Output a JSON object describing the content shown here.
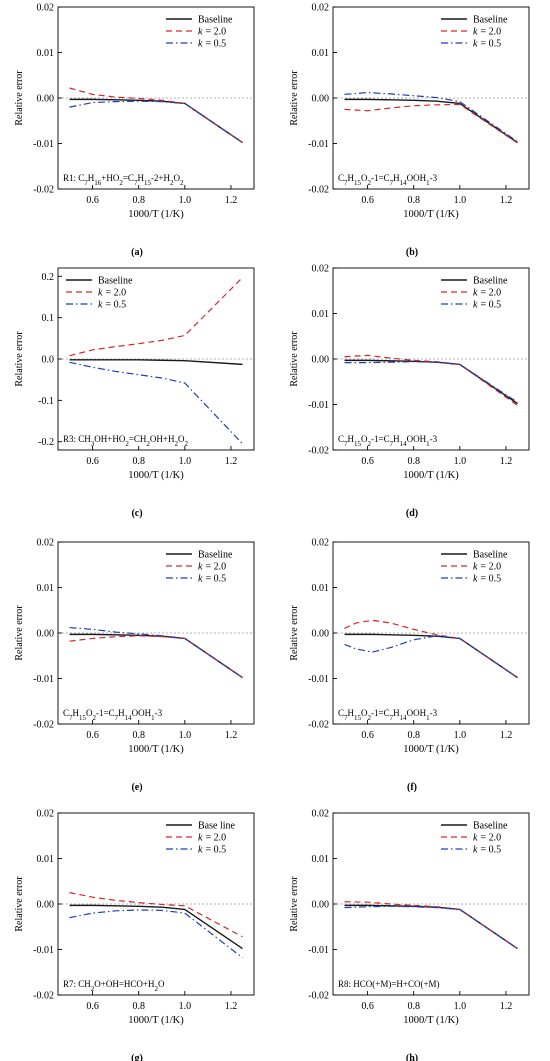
{
  "legend_labels": {
    "baseline": "Baseline",
    "baseline_alt": "Base line",
    "k_prefix": "k",
    "k2_value": "= 2.0",
    "k05_value": "= 0.5"
  },
  "colors": {
    "baseline": "#1a1a1a",
    "k2": "#d62728",
    "k05": "#1f3fbf",
    "zero_line": "#9a9a9a"
  },
  "chart_data": [
    {
      "panel": "(a)",
      "type": "line",
      "ylabel": "Relative error",
      "xlabel": "1000/T (1/K)",
      "xlim": [
        0.45,
        1.3
      ],
      "ylim": [
        -0.02,
        0.02
      ],
      "xticks": [
        0.6,
        0.8,
        1.0,
        1.2
      ],
      "xtick_labels": [
        "0.6",
        "0.8",
        "1.0",
        "1.2"
      ],
      "yticks": [
        -0.02,
        -0.01,
        0,
        0.01,
        0.02
      ],
      "ytick_labels": [
        "-0.02",
        "-0.01",
        "0.00",
        "0.01",
        "0.02"
      ],
      "legend_position": "top-right",
      "baseline_label": "Baseline",
      "annotation": {
        "base": "R1: C7H16+HO2=C7H15-2+H2O2",
        "html": "R1: C<tspan baseline-shift=\"sub\" font-size=\"7\">7</tspan>H<tspan baseline-shift=\"sub\" font-size=\"7\">16</tspan>+HO<tspan baseline-shift=\"sub\" font-size=\"7\">2</tspan>=C<tspan baseline-shift=\"sub\" font-size=\"7\">7</tspan>H<tspan baseline-shift=\"sub\" font-size=\"7\">15</tspan>-2+H<tspan baseline-shift=\"sub\" font-size=\"7\">2</tspan>O<tspan baseline-shift=\"sub\" font-size=\"7\">2</tspan>"
      },
      "x": [
        0.5,
        0.6,
        0.7,
        0.8,
        0.9,
        1.0,
        1.25
      ],
      "series": [
        {
          "name": "Baseline",
          "key": "baseline",
          "values": [
            -0.0003,
            -0.0003,
            -0.0004,
            -0.0005,
            -0.0007,
            -0.0012,
            -0.0098
          ]
        },
        {
          "name": "k = 2.0",
          "key": "k2",
          "values": [
            0.0022,
            0.0008,
            0.0002,
            -0.0001,
            -0.0005,
            -0.0012,
            -0.0098
          ]
        },
        {
          "name": "k = 0.5",
          "key": "k05",
          "values": [
            -0.002,
            -0.001,
            -0.0008,
            -0.0007,
            -0.0008,
            -0.0012,
            -0.0098
          ]
        }
      ]
    },
    {
      "panel": "(b)",
      "type": "line",
      "ylabel": "Relative error",
      "xlabel": "1000/T (1/K)",
      "xlim": [
        0.45,
        1.3
      ],
      "ylim": [
        -0.02,
        0.02
      ],
      "xticks": [
        0.6,
        0.8,
        1.0,
        1.2
      ],
      "xtick_labels": [
        "0.6",
        "0.8",
        "1.0",
        "1.2"
      ],
      "yticks": [
        -0.02,
        -0.01,
        0,
        0.01,
        0.02
      ],
      "ytick_labels": [
        "-0.02",
        "-0.01",
        "0.00",
        "0.01",
        "0.02"
      ],
      "legend_position": "top-right",
      "baseline_label": "Baseline",
      "annotation": {
        "base": "C7H15O2-1=C7H14OOH1-3",
        "html": "C<tspan baseline-shift=\"sub\" font-size=\"7\">7</tspan>H<tspan baseline-shift=\"sub\" font-size=\"7\">15</tspan>O<tspan baseline-shift=\"sub\" font-size=\"7\">2</tspan>-1=C<tspan baseline-shift=\"sub\" font-size=\"7\">7</tspan>H<tspan baseline-shift=\"sub\" font-size=\"7\">14</tspan>OOH<tspan baseline-shift=\"sub\" font-size=\"7\">1</tspan>-3"
      },
      "x": [
        0.5,
        0.6,
        0.7,
        0.8,
        0.9,
        1.0,
        1.25
      ],
      "series": [
        {
          "name": "Baseline",
          "key": "baseline",
          "values": [
            -0.0003,
            -0.0003,
            -0.0004,
            -0.0005,
            -0.0007,
            -0.0012,
            -0.0098
          ]
        },
        {
          "name": "k = 2.0",
          "key": "k2",
          "values": [
            -0.0025,
            -0.0028,
            -0.0022,
            -0.0017,
            -0.0015,
            -0.0014,
            -0.0099
          ]
        },
        {
          "name": "k = 0.5",
          "key": "k05",
          "values": [
            0.0008,
            0.0012,
            0.0009,
            0.0005,
            0.0001,
            -0.0008,
            -0.0096
          ]
        }
      ]
    },
    {
      "panel": "(c)",
      "type": "line",
      "ylabel": "Relative error",
      "xlabel": "1000/T (1/K)",
      "xlim": [
        0.45,
        1.3
      ],
      "ylim": [
        -0.22,
        0.22
      ],
      "xticks": [
        0.6,
        0.8,
        1.0,
        1.2
      ],
      "xtick_labels": [
        "0.6",
        "0.8",
        "1.0",
        "1.2"
      ],
      "yticks": [
        -0.2,
        -0.1,
        0,
        0.1,
        0.2
      ],
      "ytick_labels": [
        "-0.2",
        "-0.1",
        "0.0",
        "0.1",
        "0.2"
      ],
      "legend_position": "top-left",
      "baseline_label": "Baseline",
      "annotation": {
        "base": "R3: CH3OH+HO2=CH2OH+H2O2",
        "html": "R3: CH<tspan baseline-shift=\"sub\" font-size=\"7\">3</tspan>OH+HO<tspan baseline-shift=\"sub\" font-size=\"7\">2</tspan>=CH<tspan baseline-shift=\"sub\" font-size=\"7\">2</tspan>OH+H<tspan baseline-shift=\"sub\" font-size=\"7\">2</tspan>O<tspan baseline-shift=\"sub\" font-size=\"7\">2</tspan>"
      },
      "x": [
        0.5,
        0.6,
        0.7,
        0.8,
        0.9,
        1.0,
        1.25
      ],
      "series": [
        {
          "name": "Baseline",
          "key": "baseline",
          "values": [
            -0.002,
            -0.002,
            -0.002,
            -0.002,
            -0.003,
            -0.004,
            -0.013
          ]
        },
        {
          "name": "k = 2.0",
          "key": "k2",
          "values": [
            0.008,
            0.022,
            0.03,
            0.037,
            0.045,
            0.057,
            0.197
          ]
        },
        {
          "name": "k = 0.5",
          "key": "k05",
          "values": [
            -0.008,
            -0.02,
            -0.03,
            -0.038,
            -0.046,
            -0.058,
            -0.205
          ]
        }
      ]
    },
    {
      "panel": "(d)",
      "type": "line",
      "ylabel": "Relative error",
      "xlabel": "1000/T (1/K)",
      "xlim": [
        0.45,
        1.3
      ],
      "ylim": [
        -0.02,
        0.02
      ],
      "xticks": [
        0.6,
        0.8,
        1.0,
        1.2
      ],
      "xtick_labels": [
        "0.6",
        "0.8",
        "1.0",
        "1.2"
      ],
      "yticks": [
        -0.02,
        -0.01,
        0,
        0.01,
        0.02
      ],
      "ytick_labels": [
        "-0.02",
        "-0.01",
        "0.00",
        "0.01",
        "0.02"
      ],
      "legend_position": "top-right",
      "baseline_label": "Baseline",
      "annotation": {
        "base": "C7H15O2-1=C7H14OOH1-3",
        "html": "C<tspan baseline-shift=\"sub\" font-size=\"7\">7</tspan>H<tspan baseline-shift=\"sub\" font-size=\"7\">15</tspan>O<tspan baseline-shift=\"sub\" font-size=\"7\">2</tspan>-1=C<tspan baseline-shift=\"sub\" font-size=\"7\">7</tspan>H<tspan baseline-shift=\"sub\" font-size=\"7\">14</tspan>OOH<tspan baseline-shift=\"sub\" font-size=\"7\">1</tspan>-3"
      },
      "x": [
        0.5,
        0.6,
        0.7,
        0.8,
        0.9,
        1.0,
        1.25
      ],
      "series": [
        {
          "name": "Baseline",
          "key": "baseline",
          "values": [
            -0.0003,
            -0.0003,
            -0.0004,
            -0.0005,
            -0.0007,
            -0.0012,
            -0.0098
          ]
        },
        {
          "name": "k = 2.0",
          "key": "k2",
          "values": [
            0.0005,
            0.0008,
            0.0002,
            -0.0003,
            -0.0006,
            -0.0012,
            -0.0102
          ]
        },
        {
          "name": "k = 0.5",
          "key": "k05",
          "values": [
            -0.0008,
            -0.0008,
            -0.0007,
            -0.0006,
            -0.0007,
            -0.0012,
            -0.0095
          ]
        }
      ]
    },
    {
      "panel": "(e)",
      "type": "line",
      "ylabel": "Relative error",
      "xlabel": "1000/T (1/K)",
      "xlim": [
        0.45,
        1.3
      ],
      "ylim": [
        -0.02,
        0.02
      ],
      "xticks": [
        0.6,
        0.8,
        1.0,
        1.2
      ],
      "xtick_labels": [
        "0.6",
        "0.8",
        "1.0",
        "1.2"
      ],
      "yticks": [
        -0.02,
        -0.01,
        0,
        0.01,
        0.02
      ],
      "ytick_labels": [
        "-0.02",
        "-0.01",
        "0.00",
        "0.01",
        "0.02"
      ],
      "legend_position": "top-right",
      "baseline_label": "Baseline",
      "annotation": {
        "base": "C7H15O2-1=C7H14OOH1-3",
        "html": "C<tspan baseline-shift=\"sub\" font-size=\"7\">7</tspan>H<tspan baseline-shift=\"sub\" font-size=\"7\">15</tspan>O<tspan baseline-shift=\"sub\" font-size=\"7\">2</tspan>-1=C<tspan baseline-shift=\"sub\" font-size=\"7\">7</tspan>H<tspan baseline-shift=\"sub\" font-size=\"7\">14</tspan>OOH<tspan baseline-shift=\"sub\" font-size=\"7\">1</tspan>-3"
      },
      "x": [
        0.5,
        0.6,
        0.7,
        0.8,
        0.9,
        1.0,
        1.25
      ],
      "series": [
        {
          "name": "Baseline",
          "key": "baseline",
          "values": [
            -0.0003,
            -0.0003,
            -0.0004,
            -0.0005,
            -0.0007,
            -0.0012,
            -0.0098
          ]
        },
        {
          "name": "k = 2.0",
          "key": "k2",
          "values": [
            -0.0018,
            -0.0012,
            -0.0008,
            -0.0006,
            -0.0008,
            -0.0012,
            -0.0098
          ]
        },
        {
          "name": "k = 0.5",
          "key": "k05",
          "values": [
            0.0012,
            0.0008,
            0.0002,
            -0.0002,
            -0.0006,
            -0.0012,
            -0.0098
          ]
        }
      ]
    },
    {
      "panel": "(f)",
      "type": "line",
      "ylabel": "Relative error",
      "xlabel": "1000/T (1/K)",
      "xlim": [
        0.45,
        1.3
      ],
      "ylim": [
        -0.02,
        0.02
      ],
      "xticks": [
        0.6,
        0.8,
        1.0,
        1.2
      ],
      "xtick_labels": [
        "0.6",
        "0.8",
        "1.0",
        "1.2"
      ],
      "yticks": [
        -0.02,
        -0.01,
        0,
        0.01,
        0.02
      ],
      "ytick_labels": [
        "-0.02",
        "-0.01",
        "0.00",
        "0.01",
        "0.02"
      ],
      "legend_position": "top-right",
      "baseline_label": "Baseline",
      "annotation": {
        "base": "C7H15O2-1=C7H14OOH1-3",
        "html": "C<tspan baseline-shift=\"sub\" font-size=\"7\">7</tspan>H<tspan baseline-shift=\"sub\" font-size=\"7\">15</tspan>O<tspan baseline-shift=\"sub\" font-size=\"7\">2</tspan>-1=C<tspan baseline-shift=\"sub\" font-size=\"7\">7</tspan>H<tspan baseline-shift=\"sub\" font-size=\"7\">14</tspan>OOH<tspan baseline-shift=\"sub\" font-size=\"7\">1</tspan>-3"
      },
      "x": [
        0.5,
        0.55,
        0.62,
        0.7,
        0.8,
        0.9,
        1.0,
        1.25
      ],
      "series": [
        {
          "name": "Baseline",
          "key": "baseline",
          "values": [
            -0.0003,
            -0.0003,
            -0.0003,
            -0.0004,
            -0.0005,
            -0.0007,
            -0.0012,
            -0.0098
          ]
        },
        {
          "name": "k = 2.0",
          "key": "k2",
          "values": [
            0.001,
            0.0022,
            0.0028,
            0.0022,
            0.0008,
            -0.0004,
            -0.0012,
            -0.0098
          ]
        },
        {
          "name": "k = 0.5",
          "key": "k05",
          "values": [
            -0.0025,
            -0.0035,
            -0.0042,
            -0.0032,
            -0.0015,
            -0.0006,
            -0.0012,
            -0.0098
          ]
        }
      ]
    },
    {
      "panel": "(g)",
      "type": "line",
      "ylabel": "Relative error",
      "xlabel": "1000/T (1/K)",
      "xlim": [
        0.45,
        1.3
      ],
      "ylim": [
        -0.02,
        0.02
      ],
      "xticks": [
        0.6,
        0.8,
        1.0,
        1.2
      ],
      "xtick_labels": [
        "0.6",
        "0.8",
        "1.0",
        "1.2"
      ],
      "yticks": [
        -0.02,
        -0.01,
        0,
        0.01,
        0.02
      ],
      "ytick_labels": [
        "-0.02",
        "-0.01",
        "0.00",
        "0.01",
        "0.02"
      ],
      "legend_position": "top-right",
      "baseline_label": "Base line",
      "annotation": {
        "base": "R7: CH2O+OH=HCO+H2O",
        "html": "R7: CH<tspan baseline-shift=\"sub\" font-size=\"7\">2</tspan>O+OH=HCO+H<tspan baseline-shift=\"sub\" font-size=\"7\">2</tspan>O"
      },
      "x": [
        0.5,
        0.6,
        0.7,
        0.8,
        0.9,
        1.0,
        1.25
      ],
      "series": [
        {
          "name": "Base line",
          "key": "baseline",
          "values": [
            -0.0003,
            -0.0003,
            -0.0004,
            -0.0005,
            -0.0007,
            -0.0012,
            -0.0098
          ]
        },
        {
          "name": "k = 2.0",
          "key": "k2",
          "values": [
            0.0025,
            0.0015,
            0.0008,
            0.0003,
            -0.0001,
            -0.0004,
            -0.0072
          ]
        },
        {
          "name": "k = 0.5",
          "key": "k05",
          "values": [
            -0.003,
            -0.002,
            -0.0015,
            -0.0013,
            -0.0014,
            -0.002,
            -0.0118
          ]
        }
      ]
    },
    {
      "panel": "(h)",
      "type": "line",
      "ylabel": "Relative error",
      "xlabel": "1000/T (1/K)",
      "xlim": [
        0.45,
        1.3
      ],
      "ylim": [
        -0.02,
        0.02
      ],
      "xticks": [
        0.6,
        0.8,
        1.0,
        1.2
      ],
      "xtick_labels": [
        "0.6",
        "0.8",
        "1.0",
        "1.2"
      ],
      "yticks": [
        -0.02,
        -0.01,
        0,
        0.01,
        0.02
      ],
      "ytick_labels": [
        "-0.02",
        "-0.01",
        "0.00",
        "0.01",
        "0.02"
      ],
      "legend_position": "top-right",
      "baseline_label": "Baseline",
      "annotation": {
        "base": "R8: HCO(+M)=H+CO(+M)",
        "html": "R8: HCO(+M)=H+CO(+M)"
      },
      "x": [
        0.5,
        0.6,
        0.7,
        0.8,
        0.9,
        1.0,
        1.25
      ],
      "series": [
        {
          "name": "Baseline",
          "key": "baseline",
          "values": [
            -0.0003,
            -0.0003,
            -0.0004,
            -0.0005,
            -0.0007,
            -0.0012,
            -0.0098
          ]
        },
        {
          "name": "k = 2.0",
          "key": "k2",
          "values": [
            0.0005,
            0.0004,
            0.0,
            -0.0003,
            -0.0006,
            -0.0012,
            -0.0098
          ]
        },
        {
          "name": "k = 0.5",
          "key": "k05",
          "values": [
            -0.0008,
            -0.0006,
            -0.0005,
            -0.0006,
            -0.0008,
            -0.0012,
            -0.0098
          ]
        }
      ]
    }
  ]
}
